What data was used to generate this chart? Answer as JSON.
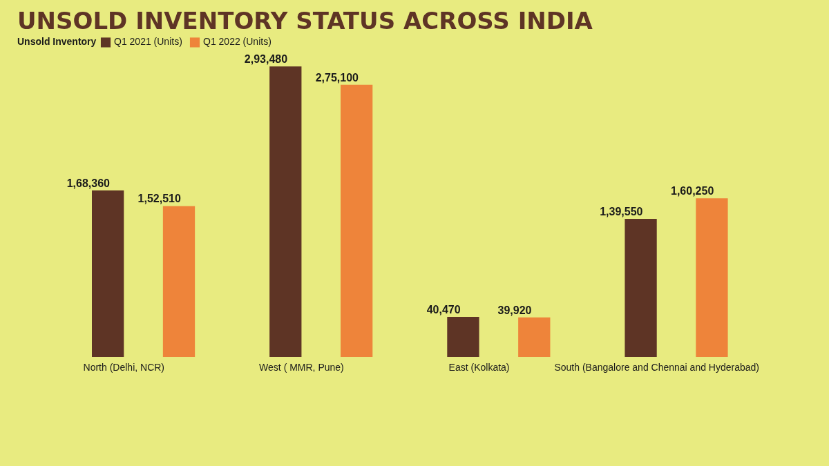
{
  "chart_data": {
    "type": "bar",
    "title": "UNSOLD INVENTORY STATUS ACROSS INDIA",
    "legend_title": "Unsold Inventory",
    "legend": "top",
    "categories": [
      "North (Delhi, NCR)",
      "West ( MMR, Pune)",
      "East (Kolkata)",
      "South (Bangalore and Chennai and Hyderabad)"
    ],
    "series": [
      {
        "name": "Q1 2021 (Units)",
        "color": "#5e3425",
        "values": [
          168360,
          293480,
          40470,
          139550
        ],
        "value_labels": [
          "1,68,360",
          "2,93,480",
          "40,470",
          "1,39,550"
        ]
      },
      {
        "name": "Q1 2022 (Units)",
        "color": "#ee843a",
        "values": [
          152510,
          275100,
          39920,
          160250
        ],
        "value_labels": [
          "1,52,510",
          "2,75,100",
          "39,920",
          "1,60,250"
        ]
      }
    ],
    "tick_labels": "x"
  }
}
